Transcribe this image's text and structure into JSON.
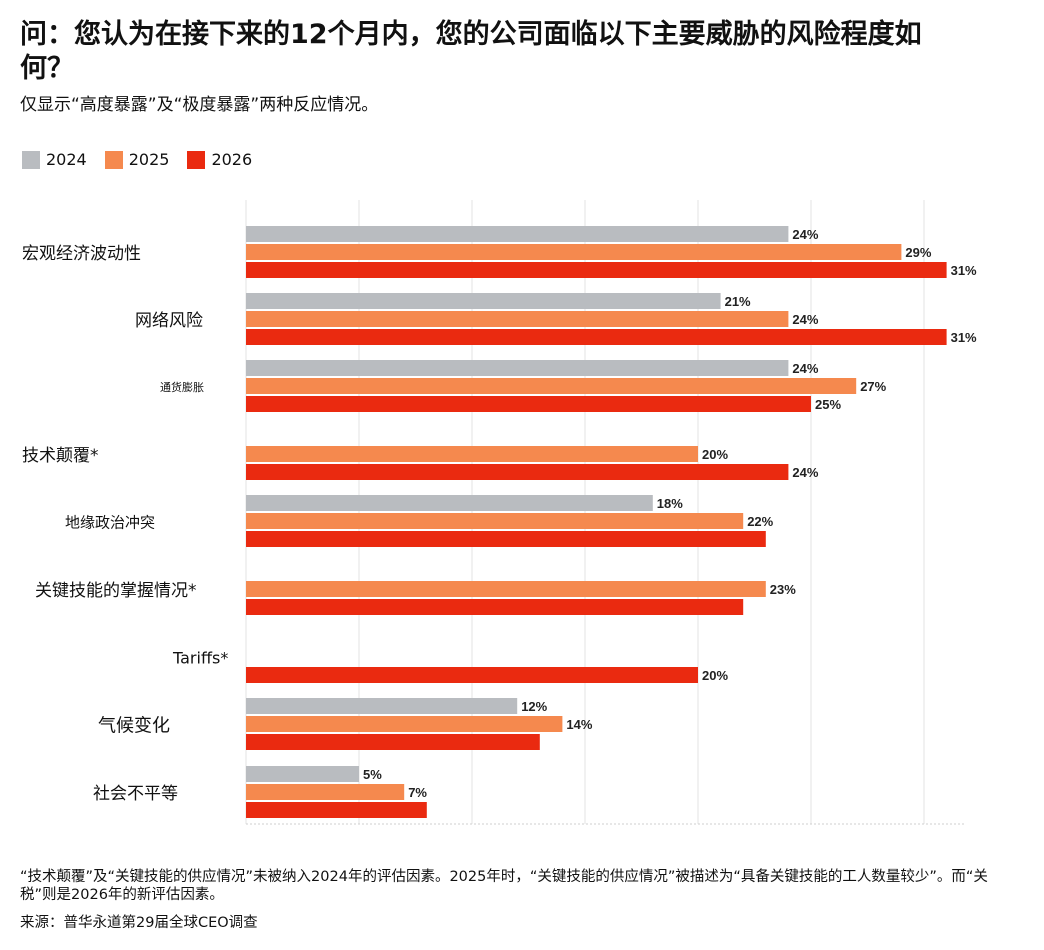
{
  "chart_data": {
    "type": "bar",
    "orientation": "horizontal",
    "title": "问：您认为在接下来的12个月内，您的公司面临以下主要威胁的风险程度如何？",
    "subtitle": "仅显示“高度暴露”及“极度暴露”两种反应情况。",
    "categories": [
      "宏观经济波动性",
      "网络风险",
      "通货膨胀",
      "技术颠覆*",
      "地缘政治冲突",
      "关键技能的掌握情况*",
      "Tariffs*",
      "气候变化",
      "社会不平等"
    ],
    "series": [
      {
        "name": "2024",
        "color": "#b9bcc0",
        "values": [
          24,
          21,
          24,
          null,
          18,
          null,
          null,
          12,
          5
        ],
        "labels": [
          "24%",
          "21%",
          "24%",
          null,
          "18%",
          null,
          null,
          "12%",
          "5%"
        ]
      },
      {
        "name": "2025",
        "color": "#f5894e",
        "values": [
          29,
          24,
          27,
          20,
          22,
          23,
          null,
          14,
          7
        ],
        "labels": [
          "29%",
          "24%",
          "27%",
          "20%",
          "22%",
          "23%",
          null,
          "14%",
          "7%"
        ]
      },
      {
        "name": "2026",
        "color": "#ea2a10",
        "values": [
          31,
          31,
          25,
          24,
          23,
          22,
          20,
          13,
          8
        ],
        "labels": [
          "31%",
          "31%",
          "25%",
          "24%",
          null,
          null,
          "20%",
          null,
          null
        ]
      }
    ],
    "xlim": [
      0,
      32
    ],
    "grid": "vertical",
    "legend_position": "top-left"
  },
  "footnote": "“技术颠覆”及“关键技能的供应情况”未被纳入2024年的评估因素。2025年时，“关键技能的供应情况”被描述为“具备关键技能的工人数量较少”。而“关税”则是2026年的新评估因素。",
  "source": "来源：普华永道第29届全球CEO调查"
}
